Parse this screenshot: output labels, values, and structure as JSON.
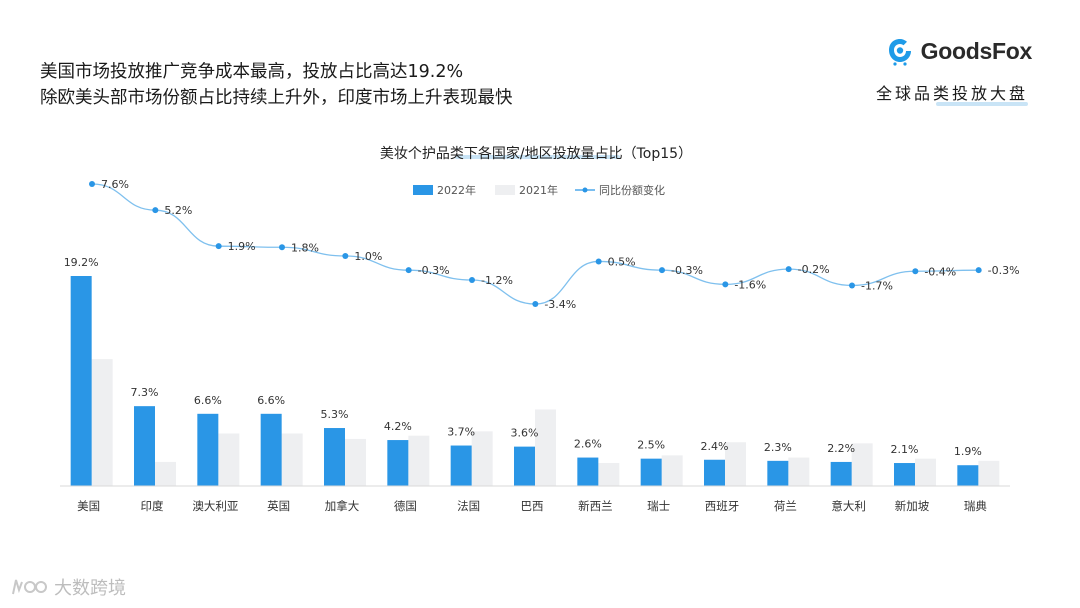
{
  "header": {
    "line1": "美国市场投放推广竞争成本最高，投放占比高达19.2%",
    "line2": "除欧美头部市场份额占比持续上升外，印度市场上升表现最快"
  },
  "brand": {
    "name": "GoodsFox",
    "subtitle": "全球品类投放大盘",
    "icon": "goodsfox-logo-icon",
    "color": "#1e9be8"
  },
  "watermark": {
    "text": "大数跨境",
    "icon": "dashujk-logo-icon"
  },
  "chart_data": {
    "type": "bar+line",
    "title": "美妆个护品类下各国家/地区投放量占比（Top15）",
    "categories": [
      "美国",
      "印度",
      "澳大利亚",
      "英国",
      "加拿大",
      "德国",
      "法国",
      "巴西",
      "新西兰",
      "瑞士",
      "西班牙",
      "荷兰",
      "意大利",
      "新加坡",
      "瑞典"
    ],
    "series": [
      {
        "name": "2022年",
        "kind": "bar",
        "color": "#2a96e6",
        "labels": true,
        "values": [
          19.2,
          7.3,
          6.6,
          6.6,
          5.3,
          4.2,
          3.7,
          3.6,
          2.6,
          2.5,
          2.4,
          2.3,
          2.2,
          2.1,
          1.9
        ]
      },
      {
        "name": "2021年",
        "kind": "bar",
        "color": "#eeeff1",
        "labels": false,
        "values": [
          11.6,
          2.2,
          4.8,
          4.8,
          4.3,
          4.6,
          5.0,
          7.0,
          2.1,
          2.8,
          4.0,
          2.6,
          3.9,
          2.5,
          2.3
        ]
      },
      {
        "name": "同比份额变化",
        "kind": "line",
        "color": "#2a96e6",
        "values": [
          7.6,
          5.2,
          1.9,
          1.8,
          1.0,
          -0.3,
          -1.2,
          -3.4,
          0.5,
          -0.3,
          -1.6,
          -0.2,
          -1.7,
          -0.4,
          -0.3
        ]
      }
    ],
    "bar_ylim": [
      0,
      20
    ],
    "line_ylim": [
      -4,
      8
    ],
    "legend_position": "top-center",
    "grid": false
  }
}
